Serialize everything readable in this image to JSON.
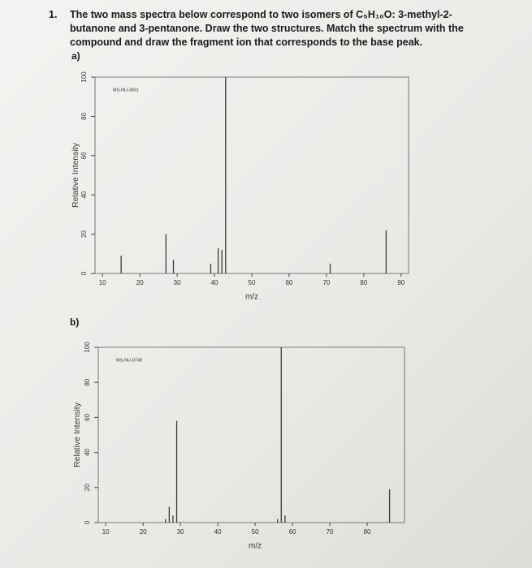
{
  "question": {
    "number": "1.",
    "text": "The two mass spectra below correspond to two isomers of C₅H₁₀O: 3-methyl-2-butanone and 3-pentanone. Draw the two structures. Match the spectrum with the compound and draw the fragment ion that corresponds to the base peak."
  },
  "chart_data": [
    {
      "type": "bar",
      "part": "a)",
      "label": "MS-NU-3651",
      "x_label": "m/z",
      "y_label": "Relative Intensity",
      "x": [
        15,
        27,
        29,
        39,
        41,
        42,
        43,
        71,
        86
      ],
      "values": [
        9,
        20,
        7,
        5,
        13,
        12,
        100,
        5,
        22
      ],
      "xlim": [
        8,
        92
      ],
      "xticks": [
        10,
        20,
        30,
        40,
        50,
        60,
        70,
        80,
        90
      ],
      "ylim": [
        0,
        100
      ],
      "yticks": [
        0,
        20,
        40,
        60,
        80,
        100
      ],
      "color": "#3a3a3a"
    },
    {
      "type": "bar",
      "part": "b)",
      "label": "MS-NU-0749",
      "x_label": "m/z",
      "y_label": "Relative Intensity",
      "x": [
        26,
        27,
        28,
        29,
        56,
        57,
        58,
        86
      ],
      "values": [
        2,
        9,
        4,
        58,
        2,
        100,
        4,
        19
      ],
      "xlim": [
        8,
        90
      ],
      "xticks": [
        10,
        20,
        30,
        40,
        50,
        60,
        70,
        80
      ],
      "ylim": [
        0,
        100
      ],
      "yticks": [
        0,
        20,
        40,
        60,
        80,
        100
      ],
      "color": "#3a3a3a"
    }
  ]
}
